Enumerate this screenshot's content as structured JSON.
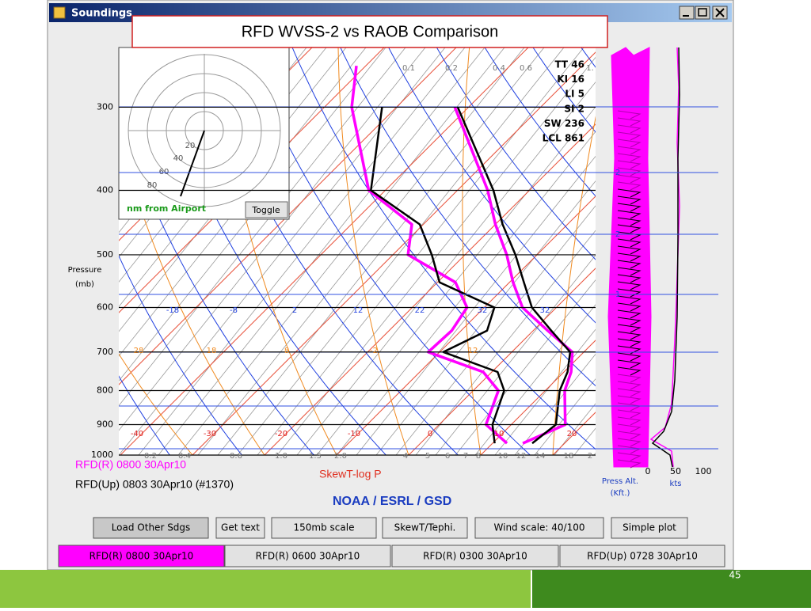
{
  "slide": {
    "title": "RFD WVSS-2 vs RAOB Comparison",
    "page_number": "45"
  },
  "window": {
    "title": "Soundings"
  },
  "skewt": {
    "pressure_label": "Pressure",
    "pressure_unit": "(mb)",
    "ylim": [
      1000,
      244
    ],
    "yticks": [
      300,
      400,
      500,
      600,
      700,
      800,
      900,
      1000
    ],
    "blue_labels": [
      "-18",
      "-8",
      "2",
      "12",
      "22",
      "32",
      "32"
    ],
    "red_labels": [
      "-40",
      "-30",
      "-20",
      "-10",
      "0",
      "10",
      "20"
    ],
    "orange_labels": [
      "28",
      "18",
      "8",
      "-2",
      "12"
    ],
    "mixing_top": [
      "0.1",
      "0.2",
      "0.4",
      "0.6",
      "1."
    ],
    "mixing_bottom": [
      "0.2",
      "0.4",
      "0.6",
      "1.0",
      "1.5",
      "2.0",
      "4",
      "5",
      "6",
      "7",
      "8",
      "10",
      "12",
      "14",
      "18",
      "2"
    ],
    "indices": [
      "TT 46",
      "KI 16",
      "LI 5",
      "SI 2",
      "SW 236",
      "LCL 861"
    ],
    "plot_label": "SkewT-log P",
    "soundings": [
      {
        "name": "RFD(R) 0800 30Apr10",
        "color": "#ff00ff",
        "pressure": [
          260,
          300,
          400,
          450,
          500,
          550,
          600,
          650,
          700,
          750,
          800,
          900,
          960
        ],
        "temperature": [
          null,
          -41.9,
          -25.8,
          -20,
          -14.2,
          -9.5,
          -4.7,
          2,
          8.4,
          11,
          12.7,
          17.5,
          14.2
        ],
        "dewpoint": [
          -61.3,
          -56.2,
          -42.3,
          -31.6,
          -27.9,
          -17.5,
          -12.4,
          -11.3,
          -11.6,
          -1.2,
          3.5,
          6.5,
          12
        ]
      },
      {
        "name": "RFD(Up) 0803 30Apr10 (#1370)",
        "color": "#000000",
        "pressure": [
          300,
          400,
          450,
          500,
          550,
          600,
          650,
          700,
          750,
          800,
          900,
          960
        ],
        "temperature": [
          -41.5,
          -25,
          -19,
          -13,
          -8,
          -3.4,
          2.5,
          8.1,
          10.5,
          12,
          16.2,
          15.5
        ],
        "dewpoint": [
          -52,
          -42,
          -30.5,
          -24.6,
          -19.7,
          -8.6,
          -6.4,
          -9.5,
          0.8,
          4.3,
          7.4,
          10.3
        ]
      }
    ]
  },
  "hodograph": {
    "rings": [
      "20",
      "40",
      "60",
      "80"
    ],
    "caption": "nm from Airport",
    "toggle": "Toggle"
  },
  "wind": {
    "height_labels": [
      "2",
      "2",
      "1"
    ],
    "speed_ticks": [
      "0",
      "50",
      "100"
    ],
    "alt_label": "Press Alt.",
    "alt_unit": "(Kft.)",
    "speed_unit": "kts"
  },
  "credit": "NOAA / ESRL / GSD",
  "buttons": [
    "Load Other Sdgs",
    "Get text",
    "150mb scale",
    "SkewT/Tephi.",
    "Wind scale: 40/100",
    "Simple plot"
  ],
  "tabs": [
    "RFD(R) 0800 30Apr10",
    "RFD(R) 0600 30Apr10",
    "RFD(R) 0300 30Apr10",
    "RFD(Up) 0728 30Apr10"
  ]
}
